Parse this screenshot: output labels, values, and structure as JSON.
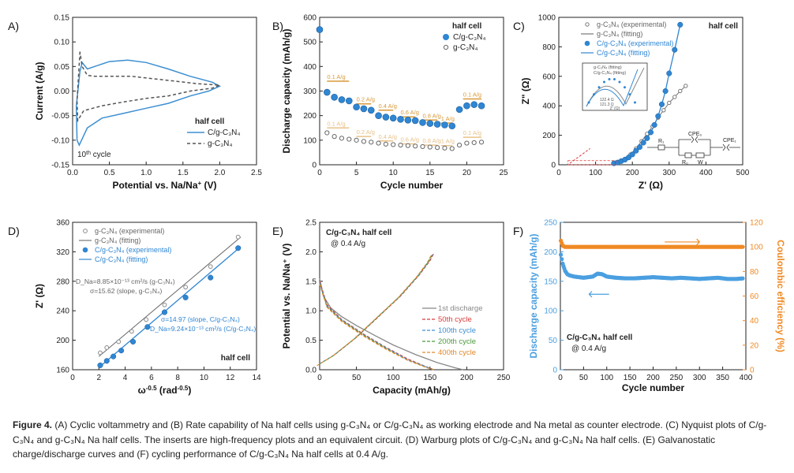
{
  "chart_data": [
    {
      "panel": "A)",
      "type": "line",
      "title": "",
      "xlabel": "Potential vs. Na/Na",
      "xlabel_sup": "+",
      "xlabel_unit": " (V)",
      "ylabel": "Current (A/g)",
      "xlim": [
        0,
        2.5
      ],
      "ylim": [
        -0.15,
        0.15
      ],
      "xticks": [
        0.0,
        0.5,
        1.0,
        1.5,
        2.0,
        2.5
      ],
      "xtick_labels": [
        "0.0",
        "0.5",
        "1.0",
        "1.5",
        "2.0",
        "2.5"
      ],
      "yticks": [
        -0.15,
        -0.1,
        -0.05,
        0.0,
        0.05,
        0.1,
        0.15
      ],
      "ytick_labels": [
        "-0.15",
        "-0.10",
        "-0.05",
        "0.00",
        "0.05",
        "0.10",
        "0.15"
      ],
      "annotations": [
        {
          "text": "10",
          "sup": "th",
          "rest": " cycle"
        }
      ],
      "legend": {
        "title": "half cell",
        "entries": [
          "C/g-C₃N₄",
          "g-C₃N₄"
        ],
        "position": "center-right"
      },
      "series": [
        {
          "name": "C/g-C₃N₄",
          "color": "#3d8fd1",
          "dash": false,
          "x": [
            0.1,
            0.05,
            0.06,
            0.09,
            0.2,
            0.4,
            0.7,
            1.0,
            1.3,
            1.6,
            1.85,
            2.0,
            1.9,
            1.6,
            1.3,
            1.0,
            0.75,
            0.5,
            0.3,
            0.2,
            0.13,
            0.1
          ],
          "y": [
            0.04,
            -0.03,
            -0.1,
            -0.11,
            -0.075,
            -0.055,
            -0.045,
            -0.035,
            -0.025,
            -0.01,
            0.0,
            0.01,
            0.018,
            0.03,
            0.045,
            0.058,
            0.063,
            0.06,
            0.05,
            0.045,
            0.058,
            0.04
          ]
        },
        {
          "name": "g-C₃N₄",
          "color": "#555555",
          "dash": true,
          "x": [
            0.1,
            0.06,
            0.07,
            0.15,
            0.4,
            0.7,
            1.0,
            1.3,
            1.6,
            1.9,
            2.0,
            1.7,
            1.4,
            1.1,
            0.8,
            0.5,
            0.3,
            0.2,
            0.13,
            0.1
          ],
          "y": [
            0.08,
            -0.02,
            -0.06,
            -0.04,
            -0.03,
            -0.022,
            -0.015,
            -0.01,
            0.0,
            0.006,
            0.012,
            0.015,
            0.02,
            0.025,
            0.03,
            0.03,
            0.03,
            0.032,
            0.05,
            0.08
          ]
        }
      ]
    },
    {
      "panel": "B)",
      "type": "scatter",
      "xlabel": "Cycle number",
      "ylabel": "Discharge capacity (mAh/g)",
      "xlim": [
        0,
        25
      ],
      "ylim": [
        0,
        600
      ],
      "xticks": [
        0,
        5,
        10,
        15,
        20,
        25
      ],
      "xtick_labels": [
        "0",
        "5",
        "10",
        "15",
        "20",
        "25"
      ],
      "yticks": [
        0,
        100,
        200,
        300,
        400,
        500,
        600
      ],
      "ytick_labels": [
        "0",
        "100",
        "200",
        "300",
        "400",
        "500",
        "600"
      ],
      "legend": {
        "title": "half cell",
        "entries": [
          "C/g-C₃N₄",
          "g-C₃N₄"
        ],
        "position": "top-right"
      },
      "rate_labels_top": [
        {
          "text": "0.1 A/g",
          "x1": 1,
          "x2": 4,
          "y": 340
        },
        {
          "text": "0.2 A/g",
          "x1": 5,
          "x2": 7,
          "y": 248
        },
        {
          "text": "0.4 A/g",
          "x1": 8,
          "x2": 10,
          "y": 222
        },
        {
          "text": "0.6 A/g",
          "x1": 11,
          "x2": 13,
          "y": 195
        },
        {
          "text": "0.8 A/g",
          "x1": 14,
          "x2": 16,
          "y": 182
        },
        {
          "text": "1 A/g",
          "x1": 16.5,
          "x2": 18,
          "y": 170
        },
        {
          "text": "0.1 A/g",
          "x1": 19.5,
          "x2": 22,
          "y": 268
        }
      ],
      "rate_labels_bottom": [
        {
          "text": "0.1 A/g",
          "x1": 1,
          "x2": 4,
          "y": 150
        },
        {
          "text": "0.2 A/g",
          "x1": 5,
          "x2": 7,
          "y": 115
        },
        {
          "text": "0.4 A/g",
          "x1": 8,
          "x2": 10,
          "y": 97
        },
        {
          "text": "0.6 A/g",
          "x1": 11,
          "x2": 13,
          "y": 85
        },
        {
          "text": "0.8 A/g",
          "x1": 14,
          "x2": 16,
          "y": 80
        },
        {
          "text": "1 A/g",
          "x1": 16.5,
          "x2": 18,
          "y": 78
        },
        {
          "text": "0.1 A/g",
          "x1": 19.5,
          "x2": 22,
          "y": 112
        }
      ],
      "series": [
        {
          "name": "C/g-C₃N₄",
          "color": "#2f86d3",
          "marker": "filled",
          "x": [
            0,
            1,
            2,
            3,
            4,
            5,
            6,
            7,
            8,
            9,
            10,
            11,
            12,
            13,
            14,
            15,
            16,
            17,
            18,
            19,
            20,
            21,
            22
          ],
          "y": [
            550,
            295,
            275,
            265,
            260,
            235,
            228,
            222,
            200,
            194,
            190,
            185,
            182,
            180,
            172,
            168,
            165,
            162,
            158,
            225,
            240,
            245,
            240
          ]
        },
        {
          "name": "g-C₃N₄",
          "color": "#666666",
          "marker": "open",
          "x": [
            1,
            2,
            3,
            4,
            5,
            6,
            7,
            8,
            9,
            10,
            11,
            12,
            13,
            14,
            15,
            16,
            17,
            18,
            19,
            20,
            21,
            22
          ],
          "y": [
            130,
            115,
            108,
            104,
            100,
            95,
            92,
            88,
            84,
            82,
            80,
            78,
            76,
            74,
            72,
            70,
            68,
            66,
            80,
            88,
            90,
            92
          ]
        }
      ]
    },
    {
      "panel": "C)",
      "type": "scatter",
      "xlabel": "Z' (Ω)",
      "ylabel": "Z\" (Ω)",
      "xlim": [
        0,
        500
      ],
      "ylim": [
        0,
        1000
      ],
      "xticks": [
        0,
        100,
        200,
        300,
        400,
        500
      ],
      "xtick_labels": [
        "0",
        "100",
        "200",
        "300",
        "400",
        "500"
      ],
      "yticks": [
        0,
        200,
        400,
        600,
        800,
        1000
      ],
      "ytick_labels": [
        "0",
        "200",
        "400",
        "600",
        "800",
        "1000"
      ],
      "legend": {
        "title": "half cell",
        "entries": [
          "g-C₃N₄ (experimental)",
          "g-C₃N₄ (fitting)",
          "C/g-C₃N₄ (experimental)",
          "C/g-C₃N₄ (fitting)"
        ],
        "position": "top-left"
      },
      "inset": {
        "legend": [
          "g-C₃N₄ (fitting)",
          "C/g-C₃N₄ (fitting)"
        ],
        "labels": [
          "122.4 Ω",
          "121.3 Ω"
        ],
        "xlabel": "Z' (Ω)"
      },
      "circuit_labels": [
        "R₁",
        "CPE₀",
        "R₀",
        "W",
        "CPE₁"
      ],
      "series": [
        {
          "name": "g-C₃N₄ (experimental)",
          "color": "#777777",
          "marker": "open",
          "x": [
            165,
            180,
            195,
            210,
            225,
            240,
            255,
            270,
            285,
            300,
            315,
            330,
            345
          ],
          "y": [
            20,
            40,
            70,
            110,
            160,
            210,
            260,
            320,
            370,
            420,
            460,
            500,
            535
          ]
        },
        {
          "name": "C/g-C₃N₄ (experimental)",
          "color": "#2f86d3",
          "marker": "filled",
          "x": [
            150,
            160,
            170,
            180,
            190,
            200,
            210,
            220,
            230,
            240,
            250,
            260,
            270,
            280,
            290,
            300,
            315,
            330
          ],
          "y": [
            10,
            15,
            25,
            35,
            50,
            70,
            95,
            120,
            150,
            180,
            220,
            270,
            330,
            410,
            500,
            620,
            780,
            950
          ]
        }
      ]
    },
    {
      "panel": "D)",
      "type": "scatter",
      "xlabel": "ω",
      "xlabel_sup": "-0.5",
      "xlabel_unit": " (rad",
      "xlabel_unit_sup": "-0.5",
      "xlabel_close": ")",
      "ylabel": "Z' (Ω)",
      "xlim": [
        0,
        14
      ],
      "ylim": [
        160,
        360
      ],
      "xticks": [
        0,
        2,
        4,
        6,
        8,
        10,
        12,
        14
      ],
      "xtick_labels": [
        "0",
        "2",
        "4",
        "6",
        "8",
        "10",
        "12",
        "14"
      ],
      "yticks": [
        160,
        200,
        240,
        280,
        320,
        360
      ],
      "ytick_labels": [
        "160",
        "200",
        "240",
        "280",
        "320",
        "360"
      ],
      "legend": {
        "title": "half cell",
        "entries": [
          "g-C₃N₄ (experimental)",
          "g-C₃N₄ (fitting)",
          "C/g-C₃N₄ (experimental)",
          "C/g-C₃N₄ (fitting)"
        ],
        "position": "top-left"
      },
      "annotations": [
        "D_Na=8.85×10⁻¹³ cm²/s (g-C₃N₄)",
        "σ=15.62 (slope, g-C₃N₄)",
        "σ=14.97 (slope, C/g-C₃N₄)",
        "D_Na=9.24×10⁻¹³ cm²/s (C/g-C₃N₄)"
      ],
      "series": [
        {
          "name": "g-C₃N₄ (experimental)",
          "color": "#888888",
          "marker": "open",
          "x": [
            2.1,
            2.6,
            3.5,
            4.5,
            5.6,
            7.0,
            8.6,
            10.5,
            12.6
          ],
          "y": [
            183,
            190,
            198,
            212,
            228,
            248,
            272,
            300,
            340
          ]
        },
        {
          "name": "C/g-C₃N₄ (experimental)",
          "color": "#2f86d3",
          "marker": "filled",
          "x": [
            2.1,
            2.6,
            3.1,
            3.7,
            4.6,
            5.7,
            7.0,
            8.6,
            10.5,
            12.6
          ],
          "y": [
            166,
            172,
            178,
            186,
            198,
            218,
            238,
            258,
            285,
            325
          ]
        }
      ]
    },
    {
      "panel": "E)",
      "type": "line",
      "xlabel": "Capacity (mAh/g)",
      "ylabel": "Potential vs. Na/Na⁺ (V)",
      "xlim": [
        0,
        250
      ],
      "ylim": [
        0.0,
        2.5
      ],
      "xticks": [
        0,
        50,
        100,
        150,
        200,
        250
      ],
      "xtick_labels": [
        "0",
        "50",
        "100",
        "150",
        "200",
        "250"
      ],
      "yticks": [
        0.0,
        0.5,
        1.0,
        1.5,
        2.0,
        2.5
      ],
      "ytick_labels": [
        "0.0",
        "0.5",
        "1.0",
        "1.5",
        "2.0",
        "2.5"
      ],
      "annotations": [
        "C/g-C₃N₄ half cell",
        "@ 0.4 A/g"
      ],
      "legend": {
        "entries": [
          "1st discharge",
          "50th cycle",
          "100th cycle",
          "200th cycle",
          "400th cycle"
        ],
        "position": "bottom-right"
      },
      "series": [
        {
          "name": "1st discharge",
          "color": "#888888",
          "dash": false,
          "x": [
            0,
            5,
            15,
            30,
            50,
            75,
            100,
            130,
            160,
            185,
            195
          ],
          "y": [
            1.55,
            1.25,
            1.05,
            0.9,
            0.75,
            0.58,
            0.42,
            0.26,
            0.12,
            0.03,
            0.0
          ]
        },
        {
          "name": "50th cycle",
          "color": "#d83c3c",
          "dash": true,
          "x": [
            0,
            10,
            30,
            60,
            90,
            120,
            145,
            155
          ],
          "y": [
            1.5,
            1.1,
            0.85,
            0.6,
            0.38,
            0.18,
            0.05,
            0.0
          ]
        },
        {
          "name": "100th cycle",
          "color": "#3d8fd1",
          "dash": true,
          "x": [
            0,
            10,
            30,
            60,
            90,
            120,
            145,
            155
          ],
          "y": [
            1.48,
            1.08,
            0.84,
            0.59,
            0.37,
            0.17,
            0.05,
            0.0
          ]
        },
        {
          "name": "200th cycle",
          "color": "#4a9a3a",
          "dash": true,
          "x": [
            0,
            10,
            30,
            60,
            90,
            120,
            145,
            155
          ],
          "y": [
            1.46,
            1.07,
            0.83,
            0.58,
            0.36,
            0.16,
            0.04,
            0.0
          ]
        },
        {
          "name": "400th cycle",
          "color": "#e0892a",
          "dash": true,
          "x": [
            0,
            10,
            30,
            60,
            90,
            120,
            145,
            155
          ],
          "y": [
            1.45,
            1.06,
            0.82,
            0.57,
            0.35,
            0.16,
            0.04,
            0.0
          ]
        },
        {
          "name": "charge",
          "color": "#d8a040",
          "dash": true,
          "x": [
            0,
            20,
            50,
            80,
            110,
            135,
            150,
            155
          ],
          "y": [
            0.1,
            0.25,
            0.55,
            0.9,
            1.25,
            1.6,
            1.85,
            1.97
          ]
        }
      ]
    },
    {
      "panel": "F)",
      "type": "scatter",
      "xlabel": "Cycle number",
      "ylabel": "Discharge capacity (mAh/g)",
      "ylabel_right": "Coulombic efficiency (%)",
      "xlim": [
        0,
        400
      ],
      "ylim": [
        0,
        250
      ],
      "ylim_right": [
        0,
        120
      ],
      "xticks": [
        0,
        50,
        100,
        150,
        200,
        250,
        300,
        350,
        400
      ],
      "xtick_labels": [
        "0",
        "50",
        "100",
        "150",
        "200",
        "250",
        "300",
        "350",
        "400"
      ],
      "yticks": [
        0,
        50,
        100,
        150,
        200,
        250
      ],
      "ytick_labels": [
        "0",
        "50",
        "100",
        "150",
        "200",
        "250"
      ],
      "yticks_right": [
        0,
        20,
        40,
        60,
        80,
        100,
        120
      ],
      "ytick_labels_right": [
        "0",
        "20",
        "40",
        "60",
        "80",
        "100",
        "120"
      ],
      "annotations": [
        "C/g-C₃N₄ half cell",
        "@ 0.4 A/g"
      ],
      "series": [
        {
          "name": "Discharge capacity",
          "color": "#4a9fe0",
          "axis": "left",
          "x": [
            1,
            5,
            10,
            15,
            20,
            30,
            40,
            50,
            60,
            70,
            80,
            90,
            100,
            120,
            140,
            160,
            180,
            200,
            220,
            240,
            260,
            280,
            300,
            320,
            340,
            360,
            380,
            395
          ],
          "y": [
            195,
            180,
            168,
            162,
            160,
            158,
            157,
            156,
            157,
            158,
            163,
            162,
            158,
            156,
            155,
            155,
            156,
            157,
            156,
            155,
            156,
            155,
            154,
            155,
            156,
            154,
            154,
            155
          ]
        },
        {
          "name": "Coulombic efficiency",
          "color": "#f08a24",
          "axis": "right",
          "x": [
            1,
            5,
            10,
            20,
            40,
            60,
            80,
            100,
            120,
            140,
            160,
            180,
            200,
            220,
            240,
            260,
            280,
            300,
            320,
            340,
            360,
            380,
            395
          ],
          "y": [
            105,
            101,
            100,
            100,
            100,
            100,
            100,
            100,
            100,
            100,
            100,
            100,
            100,
            100,
            100,
            100,
            100,
            100,
            100,
            100,
            100,
            100,
            100
          ]
        }
      ]
    }
  ],
  "caption": {
    "label": "Figure 4.",
    "text": " (A) Cyclic voltammetry and (B) Rate capability of Na half cells using g-C₃N₄ or C/g-C₃N₄ as working electrode and Na metal as counter electrode. (C) Nyquist plots of C/g-C₃N₄ and g-C₃N₄ Na half cells. The inserts are high-frequency plots and an equivalent circuit. (D) Warburg plots of C/g-C₃N₄ and g-C₃N₄ Na half cells. (E) Galvanostatic charge/discharge curves and (F) cycling performance of C/g-C₃N₄ Na half cells at 0.4 A/g."
  }
}
